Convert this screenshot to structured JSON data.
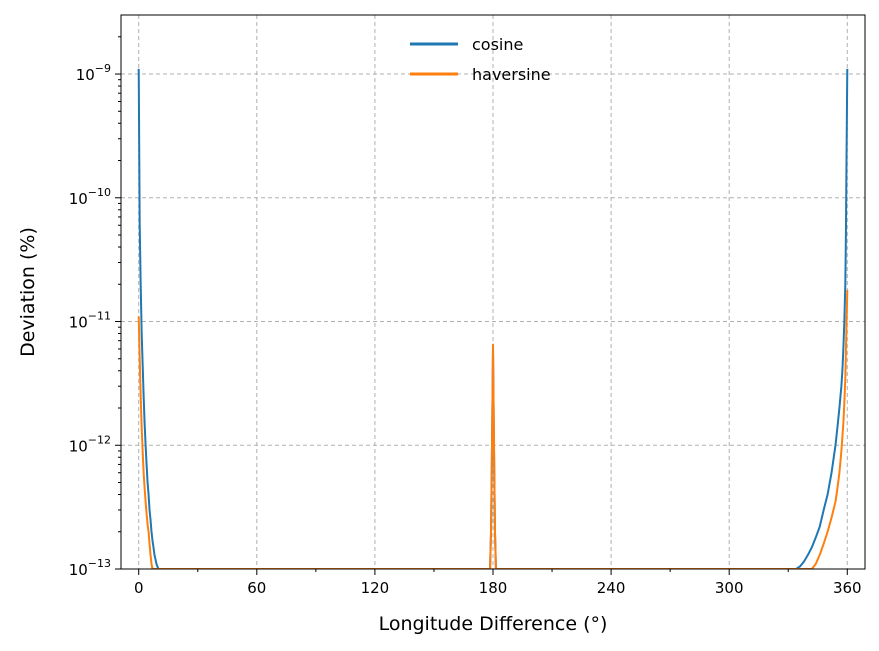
{
  "chart_data": {
    "type": "line",
    "xlabel": "Longitude Difference (°)",
    "ylabel": "Deviation (%)",
    "xlim": [
      -9,
      369
    ],
    "ylim": [
      1e-13,
      3e-09
    ],
    "yscale": "log",
    "grid": true,
    "legend_position": "top-center",
    "x_ticks": [
      0,
      60,
      120,
      180,
      240,
      300,
      360
    ],
    "y_ticks": [
      {
        "value": 1e-13,
        "base": "10",
        "exp": "−13"
      },
      {
        "value": 1e-12,
        "base": "10",
        "exp": "−12"
      },
      {
        "value": 1e-11,
        "base": "10",
        "exp": "−11"
      },
      {
        "value": 1e-10,
        "base": "10",
        "exp": "−10"
      },
      {
        "value": 1e-09,
        "base": "10",
        "exp": "−9"
      }
    ],
    "series": [
      {
        "name": "cosine",
        "color": "#1f77b4",
        "x": [
          0,
          0.5,
          1,
          1.5,
          2,
          2.5,
          3,
          3.5,
          4,
          4.5,
          5,
          5.5,
          6,
          6.5,
          7,
          7.5,
          8,
          8.5,
          9,
          9.5,
          10,
          10.5,
          178.5,
          179,
          179.5,
          180,
          180.5,
          181,
          181.5,
          334,
          336,
          338,
          340,
          342,
          344,
          346,
          348,
          350,
          352,
          354,
          355,
          356,
          357,
          357.5,
          358,
          358.5,
          359,
          359.3,
          359.6,
          360
        ],
        "y": [
          1.1e-09,
          6e-11,
          2e-11,
          8e-12,
          4.5e-12,
          2.5e-12,
          1.5e-12,
          1e-12,
          7e-13,
          5e-13,
          4e-13,
          3e-13,
          2.5e-13,
          2e-13,
          1.7e-13,
          1.5e-13,
          1.3e-13,
          1.2e-13,
          1.1e-13,
          1.05e-13,
          1e-13,
          1e-13,
          1e-13,
          2e-13,
          1e-12,
          6e-12,
          1e-12,
          2e-13,
          1e-13,
          1e-13,
          1.05e-13,
          1.15e-13,
          1.3e-13,
          1.5e-13,
          1.8e-13,
          2.2e-13,
          3e-13,
          4e-13,
          6e-13,
          1e-12,
          1.4e-12,
          2e-12,
          3e-12,
          4e-12,
          6e-12,
          1e-11,
          2e-11,
          5e-11,
          2e-10,
          1.1e-09
        ]
      },
      {
        "name": "haversine",
        "color": "#ff7f0e",
        "x": [
          0,
          0.5,
          1,
          1.5,
          2,
          2.5,
          3,
          3.5,
          4,
          4.5,
          5,
          5.5,
          6,
          6.5,
          7,
          178.5,
          179,
          179.5,
          180,
          180.5,
          181,
          181.5,
          342,
          344,
          346,
          348,
          350,
          352,
          354,
          355,
          356,
          357,
          358,
          358.5,
          359,
          359.5,
          360
        ],
        "y": [
          1.1e-11,
          5e-12,
          2.5e-12,
          1.4e-12,
          9e-13,
          6e-13,
          4.5e-13,
          3.5e-13,
          2.8e-13,
          2.3e-13,
          2e-13,
          1.6e-13,
          1.3e-13,
          1.1e-13,
          1e-13,
          1e-13,
          2e-13,
          1e-12,
          6.5e-12,
          1e-12,
          2e-13,
          1e-13,
          1e-13,
          1.1e-13,
          1.3e-13,
          1.6e-13,
          2e-13,
          2.6e-13,
          3.5e-13,
          4.5e-13,
          6e-13,
          9e-13,
          1.5e-12,
          2.2e-12,
          3.5e-12,
          8e-12,
          1.8e-11
        ]
      }
    ]
  }
}
